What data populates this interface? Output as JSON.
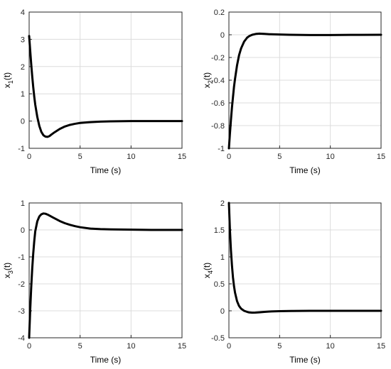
{
  "chart_data": [
    {
      "type": "line",
      "xlabel": "Time (s)",
      "ylabel": "x1(t)",
      "ylabel_main": "x",
      "ylabel_sub": "1",
      "ylabel_tail": "(t)",
      "xlim": [
        0,
        15
      ],
      "ylim": [
        -1,
        4
      ],
      "xticks": [
        0,
        5,
        10,
        15
      ],
      "yticks": [
        -1,
        0,
        1,
        2,
        3,
        4
      ],
      "grid": true,
      "series": [
        {
          "color": "#000000",
          "x": [
            0,
            0.1,
            0.2,
            0.3,
            0.4,
            0.5,
            0.6,
            0.8,
            1.0,
            1.2,
            1.4,
            1.6,
            1.8,
            2.0,
            2.2,
            2.5,
            3.0,
            3.5,
            4.0,
            4.5,
            5.0,
            6.0,
            7.0,
            8.0,
            10.0,
            12.0,
            15.0
          ],
          "y": [
            3.12,
            2.6,
            2.1,
            1.65,
            1.25,
            0.9,
            0.6,
            0.15,
            -0.18,
            -0.4,
            -0.52,
            -0.57,
            -0.58,
            -0.55,
            -0.49,
            -0.41,
            -0.29,
            -0.2,
            -0.14,
            -0.1,
            -0.07,
            -0.04,
            -0.02,
            -0.01,
            0.0,
            0.0,
            0.0
          ]
        }
      ]
    },
    {
      "type": "line",
      "xlabel": "Time (s)",
      "ylabel": "x2(t)",
      "ylabel_main": "x",
      "ylabel_sub": "2",
      "ylabel_tail": "(t)",
      "xlim": [
        0,
        15
      ],
      "ylim": [
        -1,
        0.2
      ],
      "xticks": [
        0,
        5,
        10,
        15
      ],
      "yticks": [
        -1,
        -0.8,
        -0.6,
        -0.4,
        -0.2,
        0,
        0.2
      ],
      "grid": true,
      "series": [
        {
          "color": "#000000",
          "x": [
            0,
            0.1,
            0.2,
            0.3,
            0.4,
            0.5,
            0.6,
            0.8,
            1.0,
            1.2,
            1.5,
            1.8,
            2.0,
            2.3,
            2.7,
            3.0,
            3.5,
            4.0,
            5.0,
            6.0,
            8.0,
            10.0,
            12.0,
            15.0
          ],
          "y": [
            -1.0,
            -0.87,
            -0.75,
            -0.64,
            -0.55,
            -0.46,
            -0.39,
            -0.27,
            -0.18,
            -0.12,
            -0.06,
            -0.025,
            -0.012,
            0.0,
            0.008,
            0.01,
            0.008,
            0.005,
            0.002,
            0.0,
            -0.002,
            -0.002,
            -0.001,
            0.0
          ]
        }
      ]
    },
    {
      "type": "line",
      "xlabel": "Time (s)",
      "ylabel": "x3(t)",
      "ylabel_main": "x",
      "ylabel_sub": "3",
      "ylabel_tail": "(t)",
      "xlim": [
        0,
        15
      ],
      "ylim": [
        -4,
        1
      ],
      "xticks": [
        0,
        5,
        10,
        15
      ],
      "yticks": [
        -4,
        -3,
        -2,
        -1,
        0,
        1
      ],
      "grid": true,
      "series": [
        {
          "color": "#000000",
          "x": [
            0,
            0.1,
            0.2,
            0.3,
            0.4,
            0.5,
            0.6,
            0.8,
            1.0,
            1.2,
            1.4,
            1.6,
            1.8,
            2.0,
            2.3,
            2.6,
            3.0,
            3.5,
            4.0,
            4.5,
            5.0,
            6.0,
            7.0,
            8.0,
            10.0,
            12.0,
            15.0
          ],
          "y": [
            -4.0,
            -3.0,
            -2.15,
            -1.45,
            -0.88,
            -0.42,
            -0.05,
            0.32,
            0.5,
            0.58,
            0.61,
            0.6,
            0.57,
            0.53,
            0.47,
            0.41,
            0.33,
            0.25,
            0.19,
            0.14,
            0.1,
            0.05,
            0.03,
            0.02,
            0.01,
            0.0,
            0.0
          ]
        }
      ]
    },
    {
      "type": "line",
      "xlabel": "Time (s)",
      "ylabel": "x4(t)",
      "ylabel_main": "x",
      "ylabel_sub": "4",
      "ylabel_tail": "(t)",
      "xlim": [
        0,
        15
      ],
      "ylim": [
        -0.5,
        2
      ],
      "xticks": [
        0,
        5,
        10,
        15
      ],
      "yticks": [
        -0.5,
        0,
        0.5,
        1,
        1.5,
        2
      ],
      "grid": true,
      "series": [
        {
          "color": "#000000",
          "x": [
            0,
            0.05,
            0.1,
            0.2,
            0.3,
            0.4,
            0.5,
            0.6,
            0.8,
            1.0,
            1.2,
            1.5,
            1.8,
            2.0,
            2.3,
            2.6,
            3.0,
            3.5,
            4.0,
            5.0,
            6.0,
            8.0,
            10.0,
            15.0
          ],
          "y": [
            2.0,
            1.75,
            1.5,
            1.12,
            0.84,
            0.62,
            0.46,
            0.34,
            0.18,
            0.09,
            0.04,
            0.0,
            -0.02,
            -0.03,
            -0.035,
            -0.033,
            -0.028,
            -0.02,
            -0.013,
            -0.006,
            -0.003,
            0.0,
            0.0,
            0.0
          ]
        }
      ]
    }
  ]
}
